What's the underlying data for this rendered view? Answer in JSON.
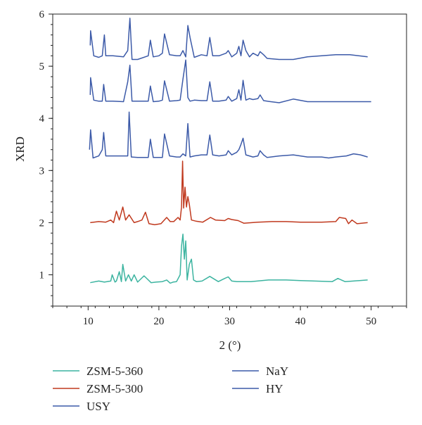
{
  "chart_data": {
    "type": "line",
    "xlabel": "2 (°)",
    "ylabel": "XRD",
    "xlim": [
      5,
      55
    ],
    "ylim": [
      0.4,
      6
    ],
    "xticks": [
      10,
      20,
      30,
      40,
      50
    ],
    "yticks": [
      1,
      2,
      3,
      4,
      5,
      6
    ],
    "xminor_step": 2,
    "yminor_step": 0.2,
    "grid": false,
    "legend_position": "bottom",
    "series": [
      {
        "name": "ZSM-5-360",
        "color": "#3cb4a0",
        "x": [
          10.3,
          11.5,
          12.3,
          13.2,
          13.4,
          13.8,
          14.0,
          14.4,
          14.7,
          14.9,
          15.3,
          15.7,
          16.1,
          16.5,
          17.0,
          17.9,
          18.9,
          19.6,
          20.5,
          21.1,
          21.6,
          22.0,
          22.5,
          23.0,
          23.2,
          23.4,
          23.6,
          23.8,
          24.0,
          24.3,
          24.6,
          24.9,
          25.3,
          26.1,
          27.2,
          28.4,
          29.3,
          29.8,
          30.3,
          31.0,
          33.0,
          35.5,
          38.0,
          40.0,
          42.0,
          44.5,
          45.3,
          46.3,
          47.5,
          49.5
        ],
        "values": [
          0.85,
          0.88,
          0.86,
          0.88,
          1.0,
          0.86,
          0.88,
          1.06,
          0.87,
          1.2,
          0.88,
          1.0,
          0.88,
          1.0,
          0.86,
          0.98,
          0.85,
          0.86,
          0.87,
          0.9,
          0.84,
          0.86,
          0.87,
          1.0,
          1.55,
          1.78,
          1.3,
          1.65,
          0.9,
          1.2,
          1.3,
          0.9,
          0.87,
          0.88,
          0.97,
          0.87,
          0.93,
          0.96,
          0.88,
          0.87,
          0.87,
          0.9,
          0.9,
          0.89,
          0.88,
          0.87,
          0.93,
          0.87,
          0.88,
          0.9
        ]
      },
      {
        "name": "ZSM-5-300",
        "color": "#c0391e",
        "x": [
          10.3,
          11.5,
          12.5,
          13.2,
          13.6,
          14.0,
          14.4,
          14.9,
          15.3,
          15.8,
          16.5,
          17.0,
          17.6,
          18.1,
          18.6,
          19.4,
          20.3,
          21.1,
          21.6,
          22.1,
          22.7,
          23.0,
          23.2,
          23.35,
          23.5,
          23.7,
          23.9,
          24.1,
          24.3,
          24.6,
          25.2,
          26.2,
          27.3,
          28.0,
          29.3,
          29.8,
          30.3,
          31.2,
          32.0,
          34.0,
          36.0,
          38.0,
          40.0,
          43.0,
          45.0,
          45.5,
          46.4,
          46.8,
          47.3,
          48.0,
          49.5
        ],
        "values": [
          2.0,
          2.02,
          2.01,
          2.05,
          2.0,
          2.22,
          2.05,
          2.3,
          2.05,
          2.15,
          2.0,
          2.02,
          2.05,
          2.2,
          1.98,
          1.96,
          1.98,
          2.1,
          2.02,
          2.02,
          2.1,
          2.05,
          2.3,
          3.18,
          2.28,
          2.68,
          2.3,
          2.5,
          2.35,
          2.05,
          2.03,
          2.01,
          2.1,
          2.05,
          2.04,
          2.08,
          2.06,
          2.04,
          1.99,
          2.01,
          2.02,
          2.02,
          2.01,
          2.01,
          2.02,
          2.1,
          2.08,
          1.98,
          2.05,
          1.98,
          2.0
        ]
      },
      {
        "name": "USY",
        "color": "#3c5aa8",
        "x": [
          10.2,
          10.35,
          10.7,
          11.5,
          12.0,
          12.2,
          12.5,
          13.5,
          15.0,
          15.6,
          15.8,
          16.1,
          17.0,
          18.5,
          18.8,
          19.2,
          20.0,
          20.5,
          20.8,
          21.5,
          22.5,
          23.0,
          23.4,
          23.8,
          24.1,
          24.4,
          25.0,
          26.0,
          26.8,
          27.2,
          27.6,
          28.5,
          29.5,
          29.8,
          30.3,
          31.0,
          31.3,
          31.6,
          31.9,
          32.3,
          32.8,
          33.3,
          34.0,
          34.3,
          34.8,
          35.3,
          37.0,
          39.0,
          41.0,
          43.0,
          44.0,
          45.0,
          46.5,
          47.5,
          48.5,
          49.5
        ],
        "values": [
          3.4,
          3.78,
          3.24,
          3.28,
          3.4,
          3.73,
          3.28,
          3.28,
          3.28,
          3.28,
          4.12,
          3.26,
          3.25,
          3.25,
          3.6,
          3.25,
          3.25,
          3.25,
          3.7,
          3.28,
          3.26,
          3.26,
          3.32,
          3.28,
          3.9,
          3.26,
          3.28,
          3.3,
          3.3,
          3.68,
          3.3,
          3.28,
          3.3,
          3.38,
          3.3,
          3.35,
          3.4,
          3.5,
          3.62,
          3.3,
          3.28,
          3.26,
          3.28,
          3.38,
          3.3,
          3.25,
          3.28,
          3.3,
          3.26,
          3.26,
          3.24,
          3.26,
          3.28,
          3.32,
          3.3,
          3.26
        ]
      },
      {
        "name": "NaY",
        "color": "#3c5aa8",
        "x": [
          10.3,
          10.35,
          10.8,
          11.5,
          12.0,
          12.2,
          12.5,
          13.5,
          15.0,
          15.6,
          15.9,
          16.2,
          17.0,
          18.5,
          18.8,
          19.2,
          20.0,
          20.5,
          20.8,
          21.5,
          22.5,
          23.0,
          23.4,
          23.8,
          24.1,
          24.4,
          25.0,
          26.0,
          26.8,
          27.2,
          27.6,
          28.5,
          29.5,
          29.8,
          30.3,
          31.0,
          31.3,
          31.6,
          31.9,
          32.3,
          32.8,
          33.3,
          34.0,
          34.3,
          34.8,
          35.3,
          37.0,
          39.0,
          41.0,
          43.0,
          46.0,
          48.0,
          50.0
        ],
        "values": [
          4.45,
          4.78,
          4.35,
          4.33,
          4.33,
          4.65,
          4.33,
          4.33,
          4.32,
          4.7,
          5.02,
          4.33,
          4.33,
          4.33,
          4.62,
          4.32,
          4.33,
          4.35,
          4.72,
          4.33,
          4.34,
          4.35,
          4.75,
          5.12,
          4.4,
          4.33,
          4.35,
          4.34,
          4.34,
          4.7,
          4.33,
          4.33,
          4.35,
          4.42,
          4.33,
          4.38,
          4.55,
          4.35,
          4.73,
          4.35,
          4.38,
          4.36,
          4.38,
          4.45,
          4.34,
          4.33,
          4.3,
          4.37,
          4.32,
          4.32,
          4.32,
          4.32,
          4.32
        ]
      },
      {
        "name": "HY",
        "color": "#3c5aa8",
        "x": [
          10.3,
          10.35,
          10.8,
          11.5,
          12.0,
          12.3,
          12.5,
          13.5,
          15.0,
          15.6,
          15.9,
          16.2,
          17.0,
          18.5,
          18.8,
          19.2,
          20.0,
          20.5,
          20.8,
          21.5,
          22.5,
          23.0,
          23.4,
          23.8,
          24.1,
          24.4,
          25.0,
          26.0,
          26.8,
          27.2,
          27.6,
          28.5,
          29.5,
          29.8,
          30.3,
          31.0,
          31.3,
          31.6,
          31.9,
          32.3,
          32.8,
          33.3,
          34.0,
          34.3,
          34.8,
          35.3,
          37.0,
          39.0,
          41.0,
          43.0,
          45.0,
          47.0,
          49.5
        ],
        "values": [
          5.4,
          5.68,
          5.2,
          5.17,
          5.2,
          5.6,
          5.2,
          5.2,
          5.18,
          5.3,
          5.92,
          5.13,
          5.13,
          5.2,
          5.5,
          5.18,
          5.2,
          5.25,
          5.62,
          5.22,
          5.2,
          5.2,
          5.3,
          5.18,
          5.78,
          5.55,
          5.17,
          5.22,
          5.2,
          5.55,
          5.2,
          5.2,
          5.25,
          5.3,
          5.18,
          5.25,
          5.38,
          5.2,
          5.5,
          5.3,
          5.18,
          5.25,
          5.2,
          5.28,
          5.22,
          5.15,
          5.13,
          5.13,
          5.18,
          5.2,
          5.22,
          5.22,
          5.18
        ]
      }
    ],
    "legend_entries": [
      {
        "series": 0,
        "label": "ZSM-5-360",
        "col": 0,
        "row": 0
      },
      {
        "series": 1,
        "label": "ZSM-5-300",
        "col": 0,
        "row": 1
      },
      {
        "series": 2,
        "label": "USY",
        "col": 0,
        "row": 2
      },
      {
        "series": 3,
        "label": "NaY",
        "col": 1,
        "row": 0
      },
      {
        "series": 4,
        "label": "HY",
        "col": 1,
        "row": 1
      }
    ]
  }
}
